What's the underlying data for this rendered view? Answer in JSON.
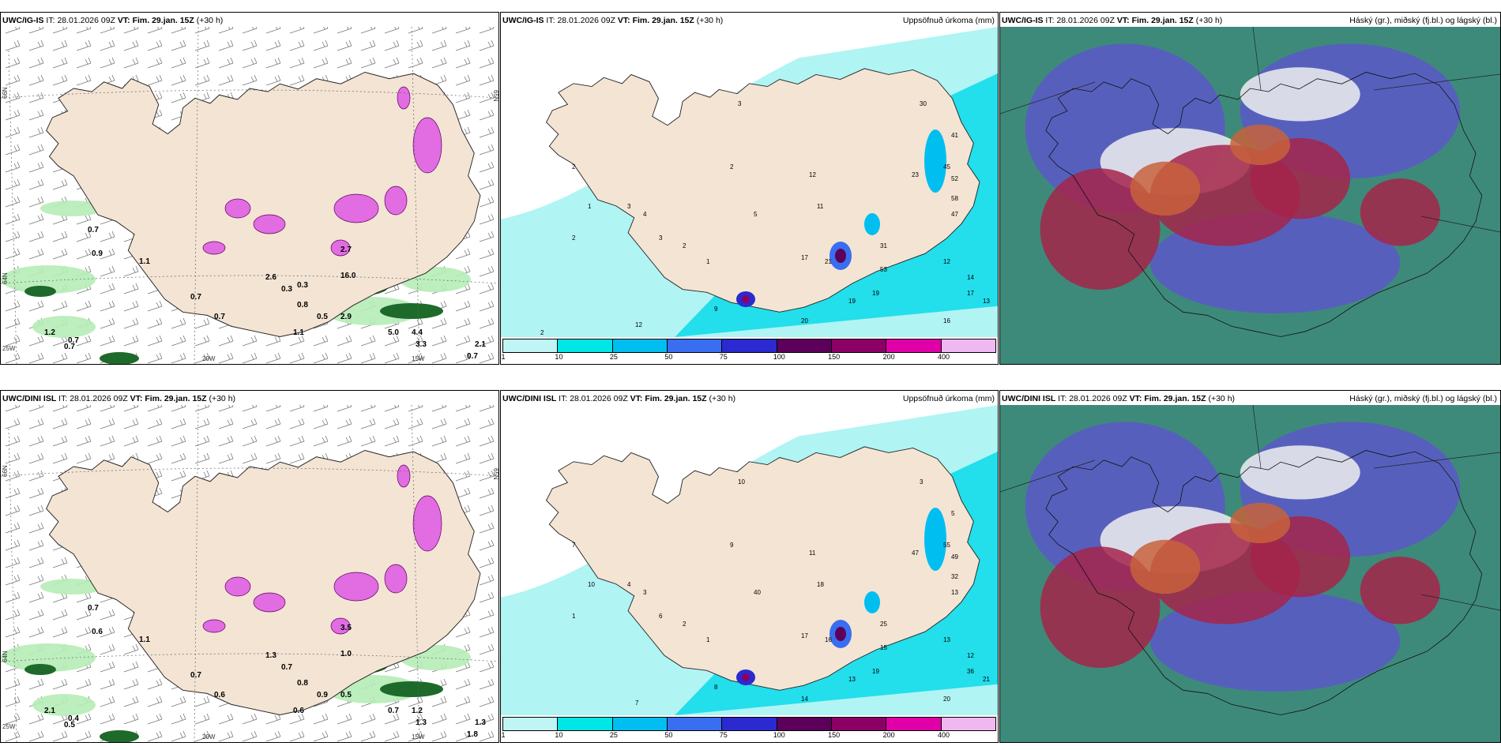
{
  "panels": [
    {
      "row": 0,
      "col": 0,
      "model": "UWC/IG-IS",
      "it_label": "IT:",
      "it_value": "28.01.2026 09Z",
      "vt_label": "VT:",
      "vt_value": "Fim. 29.jan. 15Z",
      "lead": "(+30 h)",
      "right_title": "",
      "lat_labels": [
        "66N",
        "64N",
        "65N"
      ],
      "lon_labels": [
        "20W",
        "15W",
        "25W"
      ],
      "values": [
        "0.7",
        "0.9",
        "0.7",
        "1.1",
        "0.7",
        "0.7",
        "0.3",
        "0.8",
        "0.5",
        "2.9",
        "1.1",
        "5.0",
        "4.4",
        "3.3",
        "0.7",
        "2.1",
        "1.2",
        "0.7",
        "16.0",
        "2.7",
        "2.6",
        "0.3"
      ]
    },
    {
      "row": 0,
      "col": 1,
      "model": "UWC/IG-IS",
      "it_label": "IT:",
      "it_value": "28.01.2026 09Z",
      "vt_label": "VT:",
      "vt_value": "Fim. 29.jan. 15Z",
      "lead": "(+30 h)",
      "right_title": "Uppsöfnuð úrkoma (mm)",
      "values": [
        "2",
        "1",
        "2",
        "3",
        "4",
        "3",
        "2",
        "1",
        "5",
        "12",
        "11",
        "21",
        "17",
        "31",
        "53",
        "19",
        "19",
        "20",
        "12",
        "14",
        "16",
        "13",
        "17",
        "23",
        "45",
        "52",
        "58",
        "47",
        "41",
        "30",
        "3",
        "2",
        "9",
        "12",
        "2"
      ]
    },
    {
      "row": 0,
      "col": 2,
      "model": "UWC/IG-IS",
      "it_label": "IT:",
      "it_value": "28.01.2026 09Z",
      "vt_label": "VT:",
      "vt_value": "Fim. 29.jan. 15Z",
      "lead": "(+30 h)",
      "right_title": "Háský (gr.), miðský (fj.bl.) og lágský (bl.)"
    },
    {
      "row": 1,
      "col": 0,
      "model": "UWC/DINI ISL",
      "it_label": "IT:",
      "it_value": "28.01.2026 09Z",
      "vt_label": "VT:",
      "vt_value": "Fim. 29.jan. 15Z",
      "lead": "(+30 h)",
      "right_title": "",
      "lat_labels": [
        "66N",
        "64N",
        "65N"
      ],
      "lon_labels": [
        "20W",
        "15W",
        "25W"
      ],
      "values": [
        "0.7",
        "0.6",
        "0.7",
        "1.1",
        "0.4",
        "0.6",
        "0.7",
        "0.8",
        "0.9",
        "0.5",
        "0.6",
        "0.7",
        "1.2",
        "1.3",
        "1.8",
        "1.3",
        "2.1",
        "0.5",
        "1.0",
        "3.5",
        "1.3"
      ]
    },
    {
      "row": 1,
      "col": 1,
      "model": "UWC/DINI ISL",
      "it_label": "IT:",
      "it_value": "28.01.2026 09Z",
      "vt_label": "VT:",
      "vt_value": "Fim. 29.jan. 15Z",
      "lead": "(+30 h)",
      "right_title": "Uppsöfnuð úrkoma (mm)",
      "values": [
        "1",
        "10",
        "7",
        "4",
        "3",
        "6",
        "2",
        "1",
        "40",
        "11",
        "18",
        "16",
        "17",
        "25",
        "15",
        "19",
        "13",
        "14",
        "13",
        "12",
        "20",
        "21",
        "36",
        "47",
        "55",
        "49",
        "32",
        "13",
        "5",
        "3",
        "10",
        "9",
        "8",
        "7"
      ]
    },
    {
      "row": 1,
      "col": 2,
      "model": "UWC/DINI ISL",
      "it_label": "IT:",
      "it_value": "28.01.2026 09Z",
      "vt_label": "VT:",
      "vt_value": "Fim. 29.jan. 15Z",
      "lead": "(+30 h)",
      "right_title": "Háský (gr.), miðský (fj.bl.) og lágský (bl.)"
    }
  ],
  "precip_scale": {
    "ticks": [
      "1",
      "10",
      "25",
      "50",
      "75",
      "100",
      "150",
      "200",
      "400"
    ],
    "colors": [
      "#bff5f5",
      "#00e6e6",
      "#00bff0",
      "#3a6ef0",
      "#2a2ad0",
      "#5c005c",
      "#8c0066",
      "#e000a8",
      "#f0b8f0"
    ]
  },
  "colors": {
    "land": "#f3e4d4",
    "sea": "#ffffff",
    "precip_light": "#b0f4f4",
    "precip_mid": "#00d8e8",
    "green_light": "#b6ecb6",
    "green_dark": "#1e6a2a",
    "pink": "#e26ce2",
    "cloud_teal": "#3e8a7a",
    "cloud_blue": "#5a58c8",
    "cloud_red": "#a4244a",
    "cloud_orange": "#c8623c"
  }
}
